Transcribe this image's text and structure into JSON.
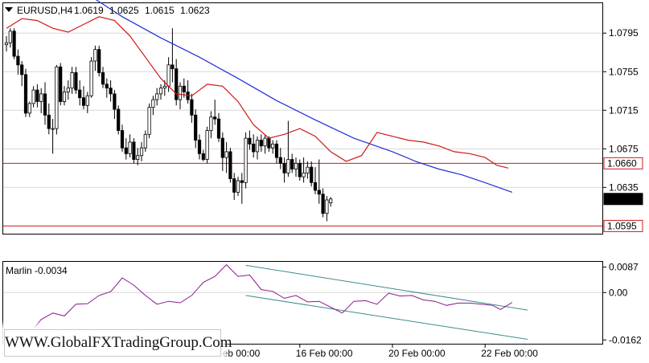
{
  "chart_data": [
    {
      "type": "candlestick",
      "symbol_title": "EURUSD,H4",
      "ohlc_header": [
        "1.0619",
        "1.0625",
        "1.0615",
        "1.0623"
      ],
      "ylim": [
        1.0587,
        1.0826
      ],
      "y_ticks": [
        "1.0795",
        "1.0755",
        "1.0715",
        "1.0675",
        "1.0635"
      ],
      "price_tags": [
        {
          "value": 1.066,
          "label": "1.0660",
          "kind": "red-level"
        },
        {
          "value": 1.0623,
          "label": "1.0623",
          "kind": "current"
        },
        {
          "value": 1.0595,
          "label": "1.0595",
          "kind": "red-level"
        }
      ],
      "x_labels": [
        {
          "bar": 52,
          "text": "14 Feb 00:00"
        },
        {
          "bar": 76,
          "text": "16 Feb 00:00"
        },
        {
          "bar": 100,
          "text": "20 Feb 00:00"
        },
        {
          "bar": 124,
          "text": "22 Feb 00:00"
        }
      ],
      "bars": [
        [
          1.0783,
          1.0792,
          1.0776,
          1.0785
        ],
        [
          1.0785,
          1.08,
          1.078,
          1.0797
        ],
        [
          1.0797,
          1.08,
          1.0768,
          1.0771
        ],
        [
          1.0771,
          1.0778,
          1.0752,
          1.0762
        ],
        [
          1.0762,
          1.0766,
          1.074,
          1.0752
        ],
        [
          1.0752,
          1.0758,
          1.0708,
          1.0712
        ],
        [
          1.0712,
          1.0724,
          1.0708,
          1.0722
        ],
        [
          1.0722,
          1.074,
          1.0718,
          1.0736
        ],
        [
          1.0736,
          1.0742,
          1.0718,
          1.0724
        ],
        [
          1.0724,
          1.0738,
          1.0712,
          1.0732
        ],
        [
          1.0732,
          1.0744,
          1.07,
          1.071
        ],
        [
          1.071,
          1.0722,
          1.069,
          1.0696
        ],
        [
          1.0696,
          1.0706,
          1.067,
          1.0696
        ],
        [
          1.0696,
          1.0762,
          1.069,
          1.076
        ],
        [
          1.076,
          1.0764,
          1.072,
          1.0724
        ],
        [
          1.0724,
          1.074,
          1.072,
          1.0734
        ],
        [
          1.0734,
          1.0746,
          1.0726,
          1.0738
        ],
        [
          1.0738,
          1.076,
          1.0732,
          1.0754
        ],
        [
          1.0754,
          1.076,
          1.0732,
          1.0736
        ],
        [
          1.0736,
          1.0746,
          1.072,
          1.0728
        ],
        [
          1.0728,
          1.074,
          1.0716,
          1.072
        ],
        [
          1.072,
          1.0734,
          1.0712,
          1.073
        ],
        [
          1.073,
          1.077,
          1.0728,
          1.0766
        ],
        [
          1.0766,
          1.0782,
          1.0756,
          1.0778
        ],
        [
          1.0778,
          1.0782,
          1.075,
          1.0754
        ],
        [
          1.0754,
          1.076,
          1.0738,
          1.0742
        ],
        [
          1.0742,
          1.0748,
          1.0728,
          1.0738
        ],
        [
          1.0738,
          1.0746,
          1.0724,
          1.0732
        ],
        [
          1.0732,
          1.0736,
          1.0706,
          1.0716
        ],
        [
          1.0716,
          1.072,
          1.069,
          1.0694
        ],
        [
          1.0694,
          1.07,
          1.0672,
          1.0676
        ],
        [
          1.0676,
          1.0686,
          1.0664,
          1.067
        ],
        [
          1.067,
          1.069,
          1.0666,
          1.0682
        ],
        [
          1.0682,
          1.0686,
          1.066,
          1.0664
        ],
        [
          1.0664,
          1.0676,
          1.0658,
          1.0668
        ],
        [
          1.0668,
          1.0682,
          1.0662,
          1.0676
        ],
        [
          1.0676,
          1.0694,
          1.0672,
          1.069
        ],
        [
          1.069,
          1.0722,
          1.0686,
          1.0718
        ],
        [
          1.0718,
          1.073,
          1.071,
          1.0726
        ],
        [
          1.0726,
          1.0738,
          1.072,
          1.0732
        ],
        [
          1.0732,
          1.0742,
          1.0726,
          1.0738
        ],
        [
          1.0738,
          1.0746,
          1.073,
          1.074
        ],
        [
          1.074,
          1.077,
          1.0734,
          1.0762
        ],
        [
          1.0762,
          1.08,
          1.0744,
          1.0758
        ],
        [
          1.0758,
          1.0768,
          1.072,
          1.0726
        ],
        [
          1.0726,
          1.0744,
          1.0716,
          1.074
        ],
        [
          1.074,
          1.0748,
          1.0728,
          1.0734
        ],
        [
          1.0734,
          1.0746,
          1.0722,
          1.0726
        ],
        [
          1.0726,
          1.0732,
          1.0702,
          1.071
        ],
        [
          1.071,
          1.0716,
          1.0676,
          1.0684
        ],
        [
          1.0684,
          1.069,
          1.0664,
          1.067
        ],
        [
          1.067,
          1.0674,
          1.0662,
          1.0664
        ],
        [
          1.0664,
          1.0698,
          1.066,
          1.0694
        ],
        [
          1.0694,
          1.0714,
          1.0686,
          1.0708
        ],
        [
          1.0708,
          1.0726,
          1.07,
          1.0706
        ],
        [
          1.0706,
          1.0712,
          1.0682,
          1.0686
        ],
        [
          1.0686,
          1.0692,
          1.0652,
          1.0666
        ],
        [
          1.0666,
          1.0682,
          1.065,
          1.0672
        ],
        [
          1.0672,
          1.0676,
          1.064,
          1.0644
        ],
        [
          1.0644,
          1.065,
          1.0622,
          1.063
        ],
        [
          1.063,
          1.0646,
          1.0626,
          1.0642
        ],
        [
          1.0642,
          1.065,
          1.0618,
          1.064
        ],
        [
          1.064,
          1.0692,
          1.0634,
          1.0686
        ],
        [
          1.0686,
          1.0694,
          1.0674,
          1.068
        ],
        [
          1.068,
          1.069,
          1.0666,
          1.0672
        ],
        [
          1.0672,
          1.0688,
          1.0664,
          1.0684
        ],
        [
          1.0684,
          1.069,
          1.0672,
          1.0678
        ],
        [
          1.0678,
          1.069,
          1.067,
          1.0686
        ],
        [
          1.0686,
          1.0688,
          1.0672,
          1.0676
        ],
        [
          1.0676,
          1.0684,
          1.067,
          1.068
        ],
        [
          1.068,
          1.0684,
          1.066,
          1.0666
        ],
        [
          1.0666,
          1.0676,
          1.0654,
          1.066
        ],
        [
          1.066,
          1.0666,
          1.064,
          1.065
        ],
        [
          1.065,
          1.0704,
          1.0646,
          1.0664
        ],
        [
          1.0664,
          1.067,
          1.065,
          1.0654
        ],
        [
          1.0654,
          1.0666,
          1.0646,
          1.066
        ],
        [
          1.066,
          1.0664,
          1.0642,
          1.0646
        ],
        [
          1.0646,
          1.0666,
          1.064,
          1.065
        ],
        [
          1.065,
          1.0662,
          1.0644,
          1.0656
        ],
        [
          1.0656,
          1.0662,
          1.0636,
          1.064
        ],
        [
          1.064,
          1.0656,
          1.0628,
          1.0632
        ],
        [
          1.0632,
          1.0664,
          1.0618,
          1.0628
        ],
        [
          1.0628,
          1.0634,
          1.0604,
          1.0608
        ],
        [
          1.0608,
          1.0626,
          1.06,
          1.0622
        ],
        [
          1.0619,
          1.0625,
          1.0615,
          1.0623
        ]
      ],
      "blue_ma": [
        [
          20,
          1.0838
        ],
        [
          30,
          1.0812
        ],
        [
          40,
          1.079
        ],
        [
          50,
          1.077
        ],
        [
          60,
          1.0748
        ],
        [
          70,
          1.0725
        ],
        [
          80,
          1.0705
        ],
        [
          90,
          1.0686
        ],
        [
          100,
          1.0672
        ],
        [
          106,
          1.0662
        ],
        [
          112,
          1.0654
        ],
        [
          118,
          1.0648
        ],
        [
          124,
          1.064
        ],
        [
          131,
          1.063
        ]
      ],
      "red_ma": [
        [
          0,
          1.08
        ],
        [
          4,
          1.081
        ],
        [
          8,
          1.0808
        ],
        [
          12,
          1.08
        ],
        [
          16,
          1.0796
        ],
        [
          20,
          1.0804
        ],
        [
          24,
          1.0812
        ],
        [
          28,
          1.0808
        ],
        [
          32,
          1.0792
        ],
        [
          36,
          1.077
        ],
        [
          40,
          1.0748
        ],
        [
          44,
          1.0732
        ],
        [
          48,
          1.073
        ],
        [
          52,
          1.0742
        ],
        [
          56,
          1.074
        ],
        [
          60,
          1.0724
        ],
        [
          64,
          1.07
        ],
        [
          68,
          1.0686
        ],
        [
          72,
          1.069
        ],
        [
          76,
          1.0696
        ],
        [
          80,
          1.0688
        ],
        [
          84,
          1.0672
        ],
        [
          88,
          1.0662
        ],
        [
          92,
          1.0668
        ],
        [
          96,
          1.0692
        ],
        [
          100,
          1.0688
        ],
        [
          104,
          1.0684
        ],
        [
          108,
          1.0682
        ],
        [
          112,
          1.0678
        ],
        [
          116,
          1.0672
        ],
        [
          120,
          1.067
        ],
        [
          124,
          1.0666
        ],
        [
          127,
          1.0658
        ],
        [
          130,
          1.0655
        ]
      ],
      "level_lines": [
        1.066,
        1.0595
      ]
    },
    {
      "type": "line",
      "indicator_label": "Marlin -0.0034",
      "ylim": [
        -0.0175,
        0.0105
      ],
      "y_ticks": [
        "0.0087",
        "0.00",
        "-0.0162"
      ],
      "x": [
        0,
        3,
        6,
        9,
        12,
        15,
        18,
        21,
        24,
        27,
        30,
        33,
        36,
        39,
        42,
        45,
        48,
        51,
        54,
        57,
        60,
        63,
        66,
        69,
        72,
        75,
        78,
        81,
        84,
        87,
        90,
        93,
        96,
        99,
        102,
        105,
        108,
        111,
        114,
        117,
        120,
        123,
        126,
        128,
        131
      ],
      "values": [
        -0.0146,
        -0.015,
        -0.014,
        -0.0092,
        -0.007,
        -0.008,
        -0.004,
        -0.0038,
        -0.001,
        0.0003,
        0.005,
        0.0025,
        -0.001,
        -0.004,
        -0.003,
        -0.0035,
        -0.001,
        0.0035,
        0.0055,
        0.0095,
        0.0055,
        0.006,
        0.001,
        0.0004,
        -0.002,
        -0.001,
        -0.0032,
        -0.003,
        -0.005,
        -0.007,
        -0.003,
        -0.0028,
        -0.004,
        -0.0002,
        -0.0012,
        -0.001,
        -0.0025,
        -0.003,
        -0.0044,
        -0.0036,
        -0.0036,
        -0.004,
        -0.0044,
        -0.0058,
        -0.0034
      ],
      "channel": {
        "upper": [
          [
            62,
            0.0093
          ],
          [
            135,
            -0.006
          ]
        ],
        "lower": [
          [
            62,
            -0.001
          ],
          [
            135,
            -0.016
          ]
        ]
      }
    }
  ],
  "watermark": "WWW.GlobalFXTradingGroup.Com",
  "colors": {
    "bull": "#ffffff",
    "bear": "#000000",
    "wick": "#000000",
    "blue_ma": "#1f2ed6",
    "red_ma": "#d01818",
    "level": "#d01818",
    "indicator": "#8a1a8a",
    "channel": "#3c8c8c",
    "grid": "#d8d8d8",
    "frame": "#000000"
  }
}
